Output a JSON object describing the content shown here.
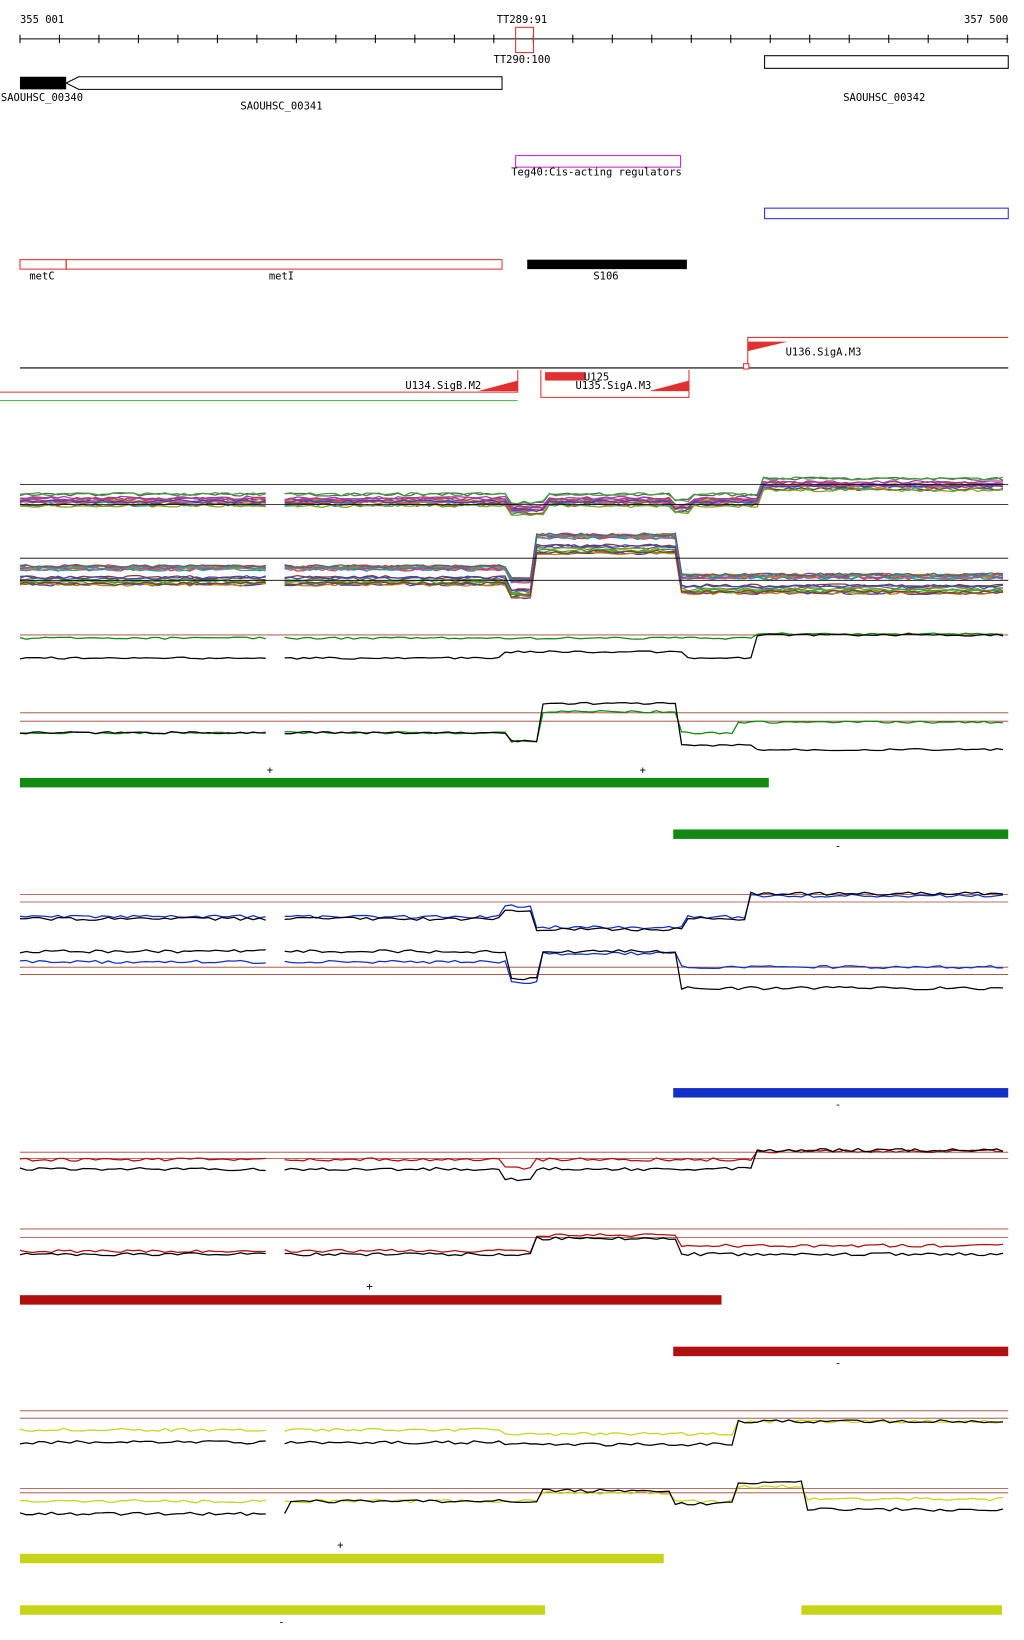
{
  "ruler": {
    "start": "355 001",
    "end": "357 500",
    "top_mark": "TT289:91",
    "bottom_mark": "TT290:100"
  },
  "genes": [
    "SAOUHSC_00340",
    "SAOUHSC_00341",
    "SAOUHSC_00342"
  ],
  "regulator": "Teg40:Cis-acting regulators",
  "features": [
    "metC",
    "metI",
    "S106"
  ],
  "promoters": [
    "U136.SigA.M3",
    "U134.SigB.M2",
    "U125",
    "U135.SigA.M3"
  ],
  "strand_marks": [
    "+",
    "+",
    "-",
    "-",
    "+",
    "-",
    "+",
    "-"
  ]
}
